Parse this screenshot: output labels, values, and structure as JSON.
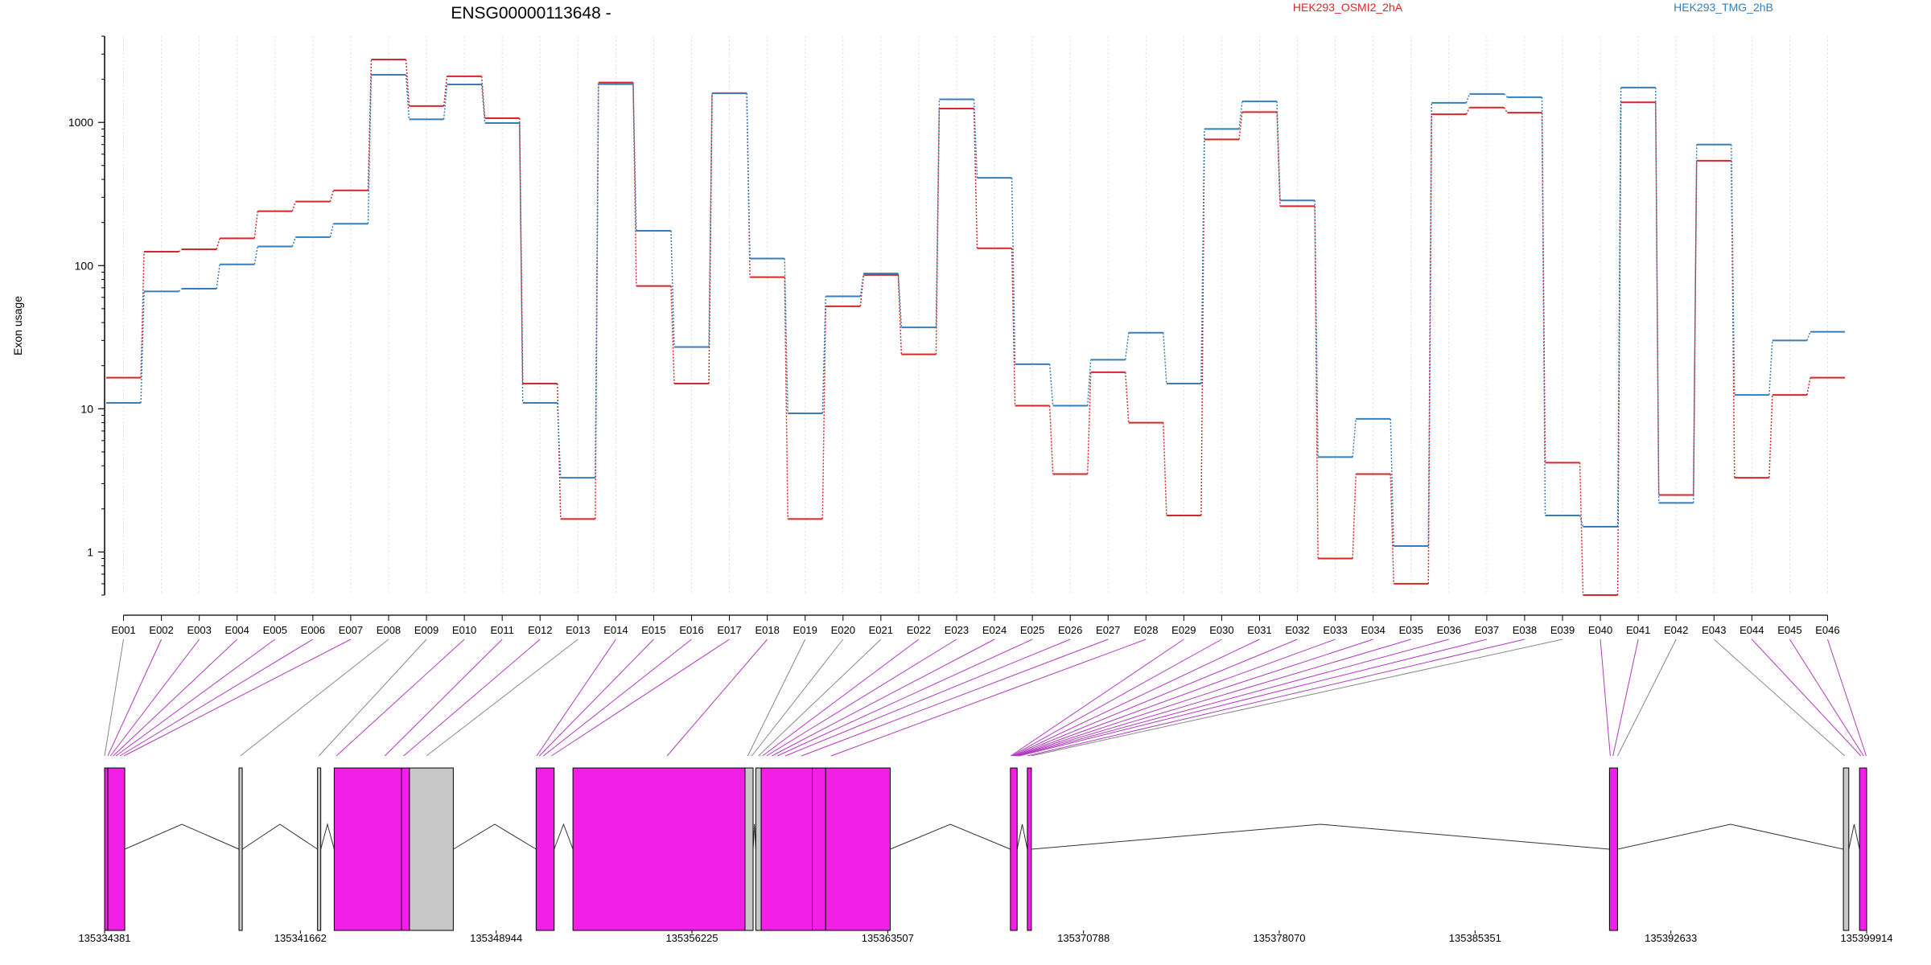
{
  "chart_data": {
    "type": "line",
    "title": "ENSG00000113648 -",
    "ylabel": "Exon usage",
    "yscale": "log",
    "yticks": [
      1,
      10,
      100,
      1000
    ],
    "ylim": [
      0.5,
      4000
    ],
    "exon_labels": [
      "E001",
      "E002",
      "E003",
      "E004",
      "E005",
      "E006",
      "E007",
      "E008",
      "E009",
      "E010",
      "E011",
      "E012",
      "E013",
      "E014",
      "E015",
      "E016",
      "E017",
      "E018",
      "E019",
      "E020",
      "E021",
      "E022",
      "E023",
      "E024",
      "E025",
      "E026",
      "E027",
      "E028",
      "E029",
      "E030",
      "E031",
      "E032",
      "E033",
      "E034",
      "E035",
      "E036",
      "E037",
      "E038",
      "E039",
      "E040",
      "E041",
      "E042",
      "E043",
      "E044",
      "E045",
      "E046"
    ],
    "series": [
      {
        "name": "HEK293_OSMI2_2hA",
        "color": "#d62728",
        "values": [
          16.5,
          125,
          130,
          155,
          240,
          280,
          335,
          2750,
          1300,
          2100,
          1070,
          15,
          1.7,
          1900,
          72,
          15,
          1600,
          83,
          1.7,
          52,
          86,
          24,
          1250,
          132,
          10.5,
          3.5,
          18,
          8,
          1.8,
          760,
          1180,
          260,
          0.9,
          3.5,
          0.6,
          1140,
          1270,
          1170,
          4.2,
          0.5,
          1380,
          2.5,
          540,
          3.3,
          12.5,
          16.5
        ]
      },
      {
        "name": "HEK293_TMG_2hB",
        "color": "#377eb8",
        "values": [
          11,
          66,
          69,
          102,
          136,
          158,
          196,
          2150,
          1050,
          1840,
          990,
          11,
          3.3,
          1850,
          175,
          27,
          1600,
          112,
          9.3,
          61,
          88,
          37,
          1450,
          410,
          20.5,
          10.5,
          22,
          34,
          15,
          900,
          1400,
          285,
          4.6,
          8.5,
          1.1,
          1370,
          1580,
          1500,
          1.8,
          1.5,
          1750,
          2.2,
          700,
          12.5,
          30,
          34.5
        ]
      }
    ],
    "genome_axis": {
      "range": [
        135334381,
        135399914
      ],
      "ticks": [
        "135334381",
        "135341662",
        "135348944",
        "135356225",
        "135363507",
        "135370788",
        "135378070",
        "135385351",
        "135392633",
        "135399914"
      ]
    },
    "exon_blocks": [
      {
        "start": 135334381,
        "end": 135334500,
        "state": "magenta"
      },
      {
        "start": 135334500,
        "end": 135335130,
        "state": "magenta"
      },
      {
        "start": 135339380,
        "end": 135339500,
        "state": "gray"
      },
      {
        "start": 135342300,
        "end": 135342420,
        "state": "gray"
      },
      {
        "start": 135342920,
        "end": 135345430,
        "state": "magenta"
      },
      {
        "start": 135345430,
        "end": 135345720,
        "state": "magenta"
      },
      {
        "start": 135345720,
        "end": 135347350,
        "state": "gray"
      },
      {
        "start": 135350430,
        "end": 135351100,
        "state": "magenta"
      },
      {
        "start": 135351800,
        "end": 135358200,
        "state": "magenta"
      },
      {
        "start": 135358200,
        "end": 135358500,
        "state": "gray"
      },
      {
        "start": 135358600,
        "end": 135358800,
        "state": "gray"
      },
      {
        "start": 135358800,
        "end": 135360700,
        "state": "magenta"
      },
      {
        "start": 135360700,
        "end": 135361200,
        "state": "magenta"
      },
      {
        "start": 135361200,
        "end": 135363600,
        "state": "magenta"
      },
      {
        "start": 135368070,
        "end": 135368320,
        "state": "magenta"
      },
      {
        "start": 135368700,
        "end": 135368850,
        "state": "magenta"
      },
      {
        "start": 135390350,
        "end": 135390650,
        "state": "magenta"
      },
      {
        "start": 135399050,
        "end": 135399250,
        "state": "gray"
      },
      {
        "start": 135399650,
        "end": 135399914,
        "state": "magenta"
      }
    ],
    "exon_connectors": [
      {
        "label": "E001",
        "pos": 135334381,
        "state": "gray"
      },
      {
        "label": "E002",
        "pos": 135334500,
        "state": "magenta"
      },
      {
        "label": "E003",
        "pos": 135334600,
        "state": "magenta"
      },
      {
        "label": "E004",
        "pos": 135334700,
        "state": "magenta"
      },
      {
        "label": "E005",
        "pos": 135334800,
        "state": "magenta"
      },
      {
        "label": "E006",
        "pos": 135334950,
        "state": "magenta"
      },
      {
        "label": "E007",
        "pos": 135335100,
        "state": "magenta"
      },
      {
        "label": "E008",
        "pos": 135339430,
        "state": "gray"
      },
      {
        "label": "E009",
        "pos": 135342350,
        "state": "gray"
      },
      {
        "label": "E010",
        "pos": 135343000,
        "state": "magenta"
      },
      {
        "label": "E011",
        "pos": 135344800,
        "state": "magenta"
      },
      {
        "label": "E012",
        "pos": 135345500,
        "state": "magenta"
      },
      {
        "label": "E013",
        "pos": 135346350,
        "state": "gray"
      },
      {
        "label": "E014",
        "pos": 135350450,
        "state": "magenta"
      },
      {
        "label": "E015",
        "pos": 135350550,
        "state": "magenta"
      },
      {
        "label": "E016",
        "pos": 135350700,
        "state": "magenta"
      },
      {
        "label": "E017",
        "pos": 135351000,
        "state": "magenta"
      },
      {
        "label": "E018",
        "pos": 135355300,
        "state": "magenta"
      },
      {
        "label": "E019",
        "pos": 135358300,
        "state": "gray"
      },
      {
        "label": "E020",
        "pos": 135358450,
        "state": "gray"
      },
      {
        "label": "E021",
        "pos": 135358700,
        "state": "gray"
      },
      {
        "label": "E022",
        "pos": 135358850,
        "state": "magenta"
      },
      {
        "label": "E023",
        "pos": 135359000,
        "state": "magenta"
      },
      {
        "label": "E024",
        "pos": 135359200,
        "state": "magenta"
      },
      {
        "label": "E025",
        "pos": 135359400,
        "state": "magenta"
      },
      {
        "label": "E026",
        "pos": 135359700,
        "state": "magenta"
      },
      {
        "label": "E027",
        "pos": 135360300,
        "state": "magenta"
      },
      {
        "label": "E028",
        "pos": 135361400,
        "state": "magenta"
      },
      {
        "label": "E029",
        "pos": 135368080,
        "state": "magenta"
      },
      {
        "label": "E030",
        "pos": 135368120,
        "state": "magenta"
      },
      {
        "label": "E031",
        "pos": 135368160,
        "state": "magenta"
      },
      {
        "label": "E032",
        "pos": 135368200,
        "state": "magenta"
      },
      {
        "label": "E033",
        "pos": 135368240,
        "state": "magenta"
      },
      {
        "label": "E034",
        "pos": 135368280,
        "state": "magenta"
      },
      {
        "label": "E035",
        "pos": 135368320,
        "state": "magenta"
      },
      {
        "label": "E036",
        "pos": 135368360,
        "state": "magenta"
      },
      {
        "label": "E037",
        "pos": 135368400,
        "state": "magenta"
      },
      {
        "label": "E038",
        "pos": 135368700,
        "state": "magenta"
      },
      {
        "label": "E039",
        "pos": 135368850,
        "state": "gray"
      },
      {
        "label": "E040",
        "pos": 135390380,
        "state": "magenta"
      },
      {
        "label": "E041",
        "pos": 135390480,
        "state": "magenta"
      },
      {
        "label": "E042",
        "pos": 135390650,
        "state": "gray"
      },
      {
        "label": "E043",
        "pos": 135399100,
        "state": "gray"
      },
      {
        "label": "E044",
        "pos": 135399700,
        "state": "magenta"
      },
      {
        "label": "E045",
        "pos": 135399800,
        "state": "magenta"
      },
      {
        "label": "E046",
        "pos": 135399900,
        "state": "magenta"
      }
    ],
    "legend": "top-right",
    "grid": "vertical dotted"
  },
  "colors": {
    "magenta": "#f21fe6",
    "connector_magenta": "#b03bbc",
    "gray_fill": "#c8c8c8",
    "connector_gray": "#888888",
    "grid": "#dcdcdc"
  }
}
